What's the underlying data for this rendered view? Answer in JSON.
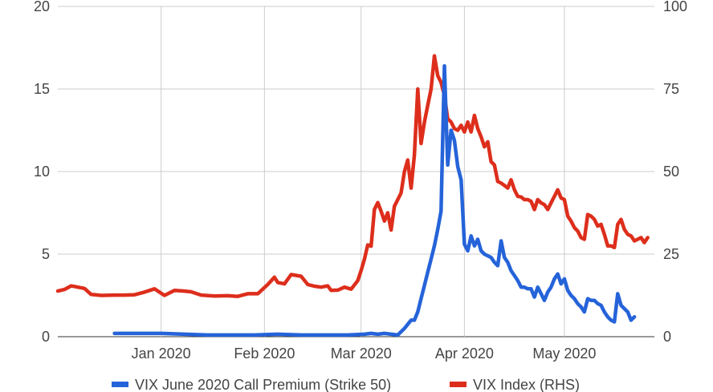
{
  "chart_data": {
    "type": "line",
    "x_ticks": [
      "Jan 2020",
      "Feb 2020",
      "Mar 2020",
      "Apr 2020",
      "May 2020"
    ],
    "y_left": {
      "ticks": [
        "0",
        "5",
        "10",
        "15",
        "20"
      ],
      "range": [
        0,
        20
      ]
    },
    "y_right": {
      "ticks": [
        "0",
        "25",
        "50",
        "75",
        "100"
      ],
      "range": [
        0,
        100
      ]
    },
    "x_range": [
      "2019-12-01",
      "2020-05-28"
    ],
    "grid": "vertical and horizontal gridlines",
    "legend_position": "bottom",
    "series": [
      {
        "name": "VIX June 2020 Call Premium (Strike 50)",
        "axis": "left",
        "color": "#2563d9",
        "points": [
          [
            "2019-12-18",
            0.2
          ],
          [
            "2019-12-25",
            0.2
          ],
          [
            "2020-01-01",
            0.2
          ],
          [
            "2020-01-08",
            0.15
          ],
          [
            "2020-01-15",
            0.1
          ],
          [
            "2020-01-22",
            0.1
          ],
          [
            "2020-01-29",
            0.1
          ],
          [
            "2020-02-05",
            0.15
          ],
          [
            "2020-02-12",
            0.1
          ],
          [
            "2020-02-19",
            0.1
          ],
          [
            "2020-02-26",
            0.1
          ],
          [
            "2020-03-02",
            0.15
          ],
          [
            "2020-03-04",
            0.2
          ],
          [
            "2020-03-06",
            0.15
          ],
          [
            "2020-03-08",
            0.2
          ],
          [
            "2020-03-10",
            0.15
          ],
          [
            "2020-03-12",
            0.1
          ],
          [
            "2020-03-14",
            0.5
          ],
          [
            "2020-03-16",
            1.0
          ],
          [
            "2020-03-17",
            1.0
          ],
          [
            "2020-03-18",
            1.5
          ],
          [
            "2020-03-19",
            2.3
          ],
          [
            "2020-03-20",
            3.1
          ],
          [
            "2020-03-21",
            3.9
          ],
          [
            "2020-03-22",
            4.7
          ],
          [
            "2020-03-23",
            5.5
          ],
          [
            "2020-03-24",
            6.5
          ],
          [
            "2020-03-25",
            7.6
          ],
          [
            "2020-03-26",
            16.4
          ],
          [
            "2020-03-27",
            10.4
          ],
          [
            "2020-03-28",
            12.5
          ],
          [
            "2020-03-29",
            11.9
          ],
          [
            "2020-03-30",
            10.3
          ],
          [
            "2020-03-31",
            9.5
          ],
          [
            "2020-04-01",
            5.6
          ],
          [
            "2020-04-02",
            5.2
          ],
          [
            "2020-04-03",
            6.1
          ],
          [
            "2020-04-04",
            5.5
          ],
          [
            "2020-04-05",
            5.9
          ],
          [
            "2020-04-06",
            5.2
          ],
          [
            "2020-04-07",
            5.0
          ],
          [
            "2020-04-08",
            4.9
          ],
          [
            "2020-04-09",
            4.8
          ],
          [
            "2020-04-10",
            4.5
          ],
          [
            "2020-04-11",
            4.3
          ],
          [
            "2020-04-12",
            5.8
          ],
          [
            "2020-04-13",
            4.8
          ],
          [
            "2020-04-14",
            4.5
          ],
          [
            "2020-04-15",
            4.0
          ],
          [
            "2020-04-16",
            3.7
          ],
          [
            "2020-04-17",
            3.4
          ],
          [
            "2020-04-18",
            3.0
          ],
          [
            "2020-04-19",
            3.0
          ],
          [
            "2020-04-20",
            2.9
          ],
          [
            "2020-04-21",
            2.9
          ],
          [
            "2020-04-22",
            2.4
          ],
          [
            "2020-04-23",
            3.0
          ],
          [
            "2020-04-24",
            2.6
          ],
          [
            "2020-04-25",
            2.2
          ],
          [
            "2020-04-26",
            2.7
          ],
          [
            "2020-04-27",
            3.0
          ],
          [
            "2020-04-28",
            3.5
          ],
          [
            "2020-04-29",
            3.8
          ],
          [
            "2020-04-30",
            3.2
          ],
          [
            "2020-05-01",
            3.5
          ],
          [
            "2020-05-02",
            2.8
          ],
          [
            "2020-05-03",
            2.5
          ],
          [
            "2020-05-04",
            2.3
          ],
          [
            "2020-05-05",
            2.0
          ],
          [
            "2020-05-06",
            1.8
          ],
          [
            "2020-05-07",
            1.5
          ],
          [
            "2020-05-08",
            2.3
          ],
          [
            "2020-05-09",
            2.2
          ],
          [
            "2020-05-10",
            2.2
          ],
          [
            "2020-05-11",
            2.0
          ],
          [
            "2020-05-12",
            1.9
          ],
          [
            "2020-05-13",
            1.5
          ],
          [
            "2020-05-14",
            1.2
          ],
          [
            "2020-05-15",
            1.0
          ],
          [
            "2020-05-16",
            0.9
          ],
          [
            "2020-05-17",
            2.6
          ],
          [
            "2020-05-18",
            1.9
          ],
          [
            "2020-05-19",
            1.7
          ],
          [
            "2020-05-20",
            1.5
          ],
          [
            "2020-05-21",
            1.0
          ],
          [
            "2020-05-22",
            1.2
          ]
        ]
      },
      {
        "name": "VIX Index (RHS)",
        "axis": "right",
        "color": "#dd2e1c",
        "points": [
          [
            "2019-12-01",
            13.8
          ],
          [
            "2019-12-03",
            14.3
          ],
          [
            "2019-12-05",
            15.4
          ],
          [
            "2019-12-07",
            15.0
          ],
          [
            "2019-12-09",
            14.6
          ],
          [
            "2019-12-11",
            12.8
          ],
          [
            "2019-12-14",
            12.5
          ],
          [
            "2019-12-18",
            12.6
          ],
          [
            "2019-12-21",
            12.6
          ],
          [
            "2019-12-24",
            12.7
          ],
          [
            "2019-12-27",
            13.5
          ],
          [
            "2019-12-30",
            14.5
          ],
          [
            "2020-01-02",
            12.5
          ],
          [
            "2020-01-05",
            14.0
          ],
          [
            "2020-01-08",
            13.8
          ],
          [
            "2020-01-10",
            13.6
          ],
          [
            "2020-01-13",
            12.6
          ],
          [
            "2020-01-17",
            12.3
          ],
          [
            "2020-01-21",
            12.4
          ],
          [
            "2020-01-24",
            12.2
          ],
          [
            "2020-01-27",
            13.0
          ],
          [
            "2020-01-30",
            13.0
          ],
          [
            "2020-02-02",
            15.8
          ],
          [
            "2020-02-04",
            18.0
          ],
          [
            "2020-02-05",
            16.4
          ],
          [
            "2020-02-07",
            16.0
          ],
          [
            "2020-02-09",
            18.8
          ],
          [
            "2020-02-12",
            18.3
          ],
          [
            "2020-02-14",
            15.8
          ],
          [
            "2020-02-16",
            15.3
          ],
          [
            "2020-02-18",
            15.0
          ],
          [
            "2020-02-20",
            15.4
          ],
          [
            "2020-02-21",
            14.0
          ],
          [
            "2020-02-23",
            14.1
          ],
          [
            "2020-02-25",
            15.0
          ],
          [
            "2020-02-27",
            14.4
          ],
          [
            "2020-02-29",
            17.0
          ],
          [
            "2020-03-01",
            20.0
          ],
          [
            "2020-03-02",
            23.5
          ],
          [
            "2020-03-03",
            27.8
          ],
          [
            "2020-03-04",
            27.4
          ],
          [
            "2020-03-05",
            38.5
          ],
          [
            "2020-03-06",
            40.6
          ],
          [
            "2020-03-07",
            38.0
          ],
          [
            "2020-03-08",
            35.0
          ],
          [
            "2020-03-09",
            37.5
          ],
          [
            "2020-03-10",
            32.3
          ],
          [
            "2020-03-11",
            39.5
          ],
          [
            "2020-03-12",
            41.5
          ],
          [
            "2020-03-13",
            43.5
          ],
          [
            "2020-03-14",
            50.0
          ],
          [
            "2020-03-15",
            53.5
          ],
          [
            "2020-03-16",
            45.0
          ],
          [
            "2020-03-17",
            55.0
          ],
          [
            "2020-03-18",
            75.0
          ],
          [
            "2020-03-19",
            58.5
          ],
          [
            "2020-03-20",
            65.0
          ],
          [
            "2020-03-21",
            70.0
          ],
          [
            "2020-03-22",
            75.0
          ],
          [
            "2020-03-23",
            85.0
          ],
          [
            "2020-03-24",
            79.0
          ],
          [
            "2020-03-25",
            77.0
          ],
          [
            "2020-03-26",
            73.0
          ],
          [
            "2020-03-27",
            66.0
          ],
          [
            "2020-03-28",
            65.0
          ],
          [
            "2020-03-29",
            63.0
          ],
          [
            "2020-03-30",
            62.5
          ],
          [
            "2020-03-31",
            64.0
          ],
          [
            "2020-04-01",
            62.0
          ],
          [
            "2020-04-02",
            65.0
          ],
          [
            "2020-04-03",
            62.0
          ],
          [
            "2020-04-04",
            67.0
          ],
          [
            "2020-04-05",
            63.0
          ],
          [
            "2020-04-06",
            60.5
          ],
          [
            "2020-04-07",
            57.5
          ],
          [
            "2020-04-08",
            59.0
          ],
          [
            "2020-04-09",
            53.0
          ],
          [
            "2020-04-10",
            52.0
          ],
          [
            "2020-04-11",
            47.0
          ],
          [
            "2020-04-12",
            46.5
          ],
          [
            "2020-04-13",
            45.8
          ],
          [
            "2020-04-14",
            45.0
          ],
          [
            "2020-04-15",
            47.5
          ],
          [
            "2020-04-16",
            44.5
          ],
          [
            "2020-04-17",
            42.5
          ],
          [
            "2020-04-18",
            42.3
          ],
          [
            "2020-04-19",
            41.5
          ],
          [
            "2020-04-20",
            41.5
          ],
          [
            "2020-04-21",
            41.0
          ],
          [
            "2020-04-22",
            38.5
          ],
          [
            "2020-04-23",
            41.5
          ],
          [
            "2020-04-24",
            40.5
          ],
          [
            "2020-04-25",
            40.0
          ],
          [
            "2020-04-26",
            38.5
          ],
          [
            "2020-04-27",
            40.5
          ],
          [
            "2020-04-28",
            42.5
          ],
          [
            "2020-04-29",
            44.5
          ],
          [
            "2020-04-30",
            42.0
          ],
          [
            "2020-05-01",
            41.5
          ],
          [
            "2020-05-02",
            36.5
          ],
          [
            "2020-05-03",
            35.0
          ],
          [
            "2020-05-04",
            33.0
          ],
          [
            "2020-05-05",
            32.0
          ],
          [
            "2020-05-06",
            30.0
          ],
          [
            "2020-05-07",
            29.5
          ],
          [
            "2020-05-08",
            37.0
          ],
          [
            "2020-05-09",
            36.5
          ],
          [
            "2020-05-10",
            35.5
          ],
          [
            "2020-05-11",
            33.5
          ],
          [
            "2020-05-12",
            34.0
          ],
          [
            "2020-05-13",
            31.0
          ],
          [
            "2020-05-14",
            27.5
          ],
          [
            "2020-05-15",
            27.5
          ],
          [
            "2020-05-16",
            27.0
          ],
          [
            "2020-05-17",
            34.0
          ],
          [
            "2020-05-18",
            35.5
          ],
          [
            "2020-05-19",
            32.5
          ],
          [
            "2020-05-20",
            31.0
          ],
          [
            "2020-05-21",
            30.5
          ],
          [
            "2020-05-22",
            29.0
          ],
          [
            "2020-05-23",
            29.5
          ],
          [
            "2020-05-24",
            30.0
          ],
          [
            "2020-05-25",
            28.5
          ],
          [
            "2020-05-26",
            30.0
          ]
        ]
      }
    ]
  }
}
